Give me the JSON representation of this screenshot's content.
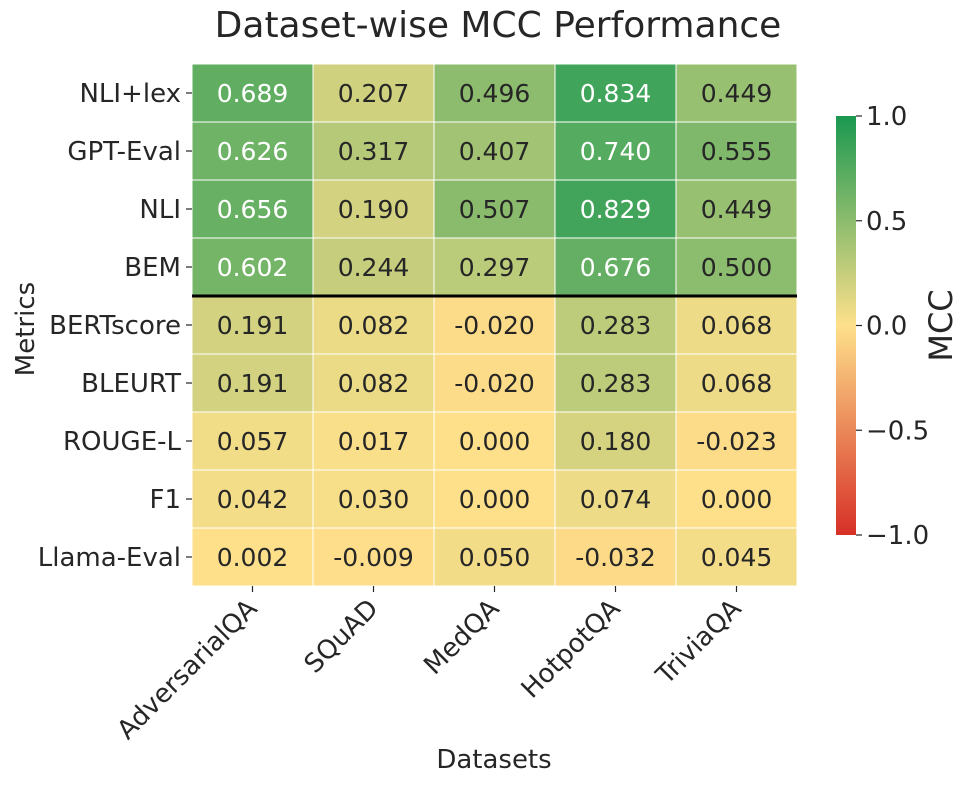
{
  "chart_data": {
    "type": "heatmap",
    "title": "Dataset-wise MCC Performance",
    "xlabel": "Datasets",
    "ylabel": "Metrics",
    "x_categories": [
      "AdversarialQA",
      "SQuAD",
      "MedQA",
      "HotpotQA",
      "TriviaQA"
    ],
    "y_categories": [
      "NLI+lex",
      "GPT-Eval",
      "NLI",
      "BEM",
      "BERTscore",
      "BLEURT",
      "ROUGE-L",
      "F1",
      "Llama-Eval"
    ],
    "values": [
      [
        0.689,
        0.207,
        0.496,
        0.834,
        0.449
      ],
      [
        0.626,
        0.317,
        0.407,
        0.74,
        0.555
      ],
      [
        0.656,
        0.19,
        0.507,
        0.829,
        0.449
      ],
      [
        0.602,
        0.244,
        0.297,
        0.676,
        0.5
      ],
      [
        0.191,
        0.082,
        -0.02,
        0.283,
        0.068
      ],
      [
        0.191,
        0.082,
        -0.02,
        0.283,
        0.068
      ],
      [
        0.057,
        0.017,
        0.0,
        0.18,
        -0.023
      ],
      [
        0.042,
        0.03,
        0.0,
        0.074,
        0.0
      ],
      [
        0.002,
        -0.009,
        0.05,
        -0.032,
        0.045
      ]
    ],
    "value_labels": [
      [
        "0.689",
        "0.207",
        "0.496",
        "0.834",
        "0.449"
      ],
      [
        "0.626",
        "0.317",
        "0.407",
        "0.740",
        "0.555"
      ],
      [
        "0.656",
        "0.190",
        "0.507",
        "0.829",
        "0.449"
      ],
      [
        "0.602",
        "0.244",
        "0.297",
        "0.676",
        "0.500"
      ],
      [
        "0.191",
        "0.082",
        "-0.020",
        "0.283",
        "0.068"
      ],
      [
        "0.191",
        "0.082",
        "-0.020",
        "0.283",
        "0.068"
      ],
      [
        "0.057",
        "0.017",
        "0.000",
        "0.180",
        "-0.023"
      ],
      [
        "0.042",
        "0.030",
        "0.000",
        "0.074",
        "0.000"
      ],
      [
        "0.002",
        "-0.009",
        "0.050",
        "-0.032",
        "0.045"
      ]
    ],
    "separator_after_row": "BEM",
    "colorbar": {
      "label": "MCC",
      "range": [
        -1.0,
        1.0
      ],
      "ticks": [
        1.0,
        0.5,
        0.0,
        -0.5,
        -1.0
      ],
      "tick_labels": [
        "1.0",
        "0.5",
        "0.0",
        "−0.5",
        "−1.0"
      ],
      "colors": [
        "#d73027",
        "#fee08b",
        "#1a9850"
      ]
    }
  }
}
